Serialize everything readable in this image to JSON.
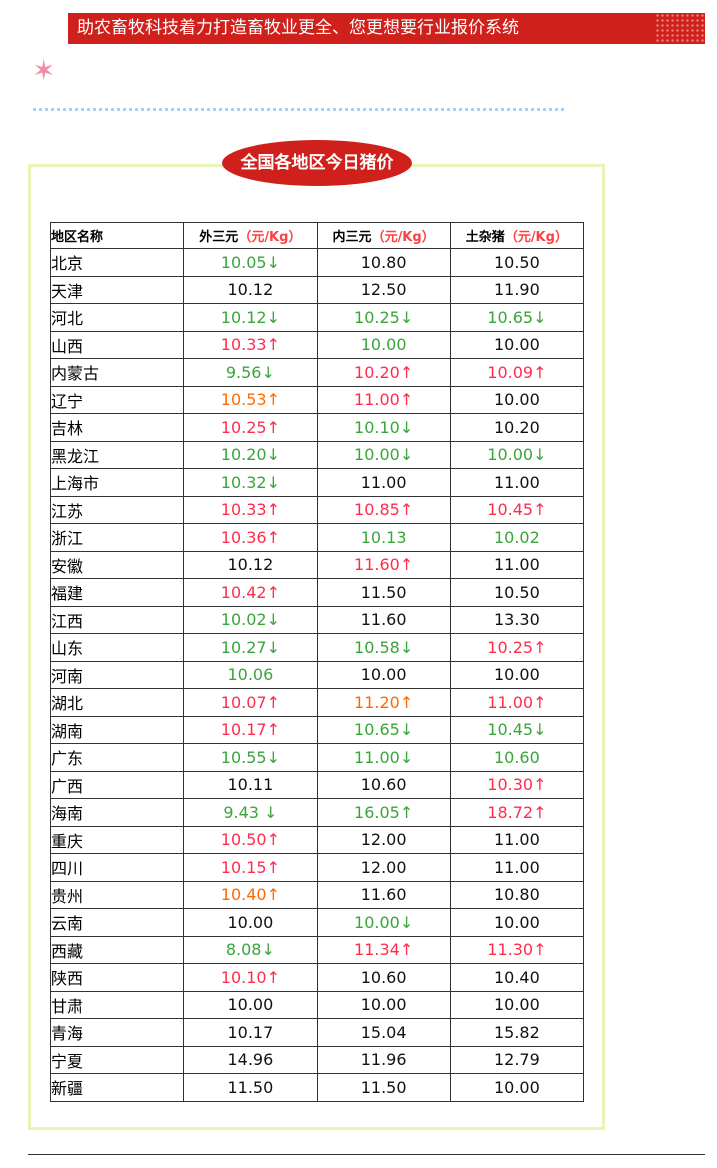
{
  "banner": {
    "title": "助农畜牧科技着力打造畜牧业更全、您更想要行业报价系统"
  },
  "section": {
    "title": "全国各地区今日猪价"
  },
  "colors": {
    "down": "#3aa53a",
    "up": "#ff2d4b",
    "up_alt": "#ff6a00",
    "neutral": "#111111",
    "banner": "#d0201b"
  },
  "table": {
    "headers": [
      {
        "label": "地区名称",
        "unit": ""
      },
      {
        "label": "外三元",
        "unit": "（元/Kg）"
      },
      {
        "label": "内三元",
        "unit": "（元/Kg）"
      },
      {
        "label": "土杂猪",
        "unit": "（元/Kg）"
      }
    ],
    "rows": [
      {
        "region": "北京",
        "cells": [
          [
            "10.05↓",
            "g"
          ],
          [
            "10.80",
            "k"
          ],
          [
            "10.50",
            "k"
          ]
        ]
      },
      {
        "region": "天津",
        "cells": [
          [
            "10.12",
            "k"
          ],
          [
            "12.50",
            "k"
          ],
          [
            "11.90",
            "k"
          ]
        ]
      },
      {
        "region": "河北",
        "cells": [
          [
            "10.12↓",
            "g"
          ],
          [
            "10.25↓",
            "g"
          ],
          [
            "10.65↓",
            "g"
          ]
        ]
      },
      {
        "region": "山西",
        "cells": [
          [
            "10.33↑",
            "r"
          ],
          [
            "10.00",
            "g"
          ],
          [
            "10.00",
            "k"
          ]
        ]
      },
      {
        "region": "内蒙古",
        "cells": [
          [
            "9.56↓",
            "g"
          ],
          [
            "10.20↑",
            "r"
          ],
          [
            "10.09↑",
            "r"
          ]
        ]
      },
      {
        "region": "辽宁",
        "cells": [
          [
            "10.53↑",
            "o"
          ],
          [
            "11.00↑",
            "r"
          ],
          [
            "10.00",
            "k"
          ]
        ]
      },
      {
        "region": "吉林",
        "cells": [
          [
            "10.25↑",
            "r"
          ],
          [
            "10.10↓",
            "g"
          ],
          [
            "10.20",
            "k"
          ]
        ]
      },
      {
        "region": "黑龙江",
        "cells": [
          [
            "10.20↓",
            "g"
          ],
          [
            "10.00↓",
            "g"
          ],
          [
            "10.00↓",
            "g"
          ]
        ]
      },
      {
        "region": "上海市",
        "cells": [
          [
            "10.32↓",
            "g"
          ],
          [
            "11.00",
            "k"
          ],
          [
            "11.00",
            "k"
          ]
        ]
      },
      {
        "region": "江苏",
        "cells": [
          [
            "10.33↑",
            "r"
          ],
          [
            "10.85↑",
            "r"
          ],
          [
            "10.45↑",
            "r"
          ]
        ]
      },
      {
        "region": "浙江",
        "cells": [
          [
            "10.36↑",
            "r"
          ],
          [
            "10.13",
            "g"
          ],
          [
            "10.02",
            "g"
          ]
        ]
      },
      {
        "region": "安徽",
        "cells": [
          [
            "10.12",
            "k"
          ],
          [
            "11.60↑",
            "r"
          ],
          [
            "11.00",
            "k"
          ]
        ]
      },
      {
        "region": "福建",
        "cells": [
          [
            "10.42↑",
            "r"
          ],
          [
            "11.50",
            "k"
          ],
          [
            "10.50",
            "k"
          ]
        ]
      },
      {
        "region": "江西",
        "cells": [
          [
            "10.02↓",
            "g"
          ],
          [
            "11.60",
            "k"
          ],
          [
            "13.30",
            "k"
          ]
        ]
      },
      {
        "region": "山东",
        "cells": [
          [
            "10.27↓",
            "g"
          ],
          [
            "10.58↓",
            "g"
          ],
          [
            "10.25↑",
            "r"
          ]
        ]
      },
      {
        "region": "河南",
        "cells": [
          [
            "10.06",
            "g"
          ],
          [
            "10.00",
            "k"
          ],
          [
            "10.00",
            "k"
          ]
        ]
      },
      {
        "region": "湖北",
        "cells": [
          [
            "10.07↑",
            "r"
          ],
          [
            "11.20↑",
            "o"
          ],
          [
            "11.00↑",
            "r"
          ]
        ]
      },
      {
        "region": "湖南",
        "cells": [
          [
            "10.17↑",
            "r"
          ],
          [
            "10.65↓",
            "g"
          ],
          [
            "10.45↓",
            "g"
          ]
        ]
      },
      {
        "region": "广东",
        "cells": [
          [
            "10.55↓",
            "g"
          ],
          [
            "11.00↓",
            "g"
          ],
          [
            "10.60",
            "g"
          ]
        ]
      },
      {
        "region": "广西",
        "cells": [
          [
            "10.11",
            "k"
          ],
          [
            "10.60",
            "k"
          ],
          [
            "10.30↑",
            "r"
          ]
        ]
      },
      {
        "region": "海南",
        "cells": [
          [
            "9.43 ↓",
            "g"
          ],
          [
            "16.05↑",
            "g"
          ],
          [
            "18.72↑",
            "r"
          ]
        ]
      },
      {
        "region": "重庆",
        "cells": [
          [
            "10.50↑",
            "r"
          ],
          [
            "12.00",
            "k"
          ],
          [
            "11.00",
            "k"
          ]
        ]
      },
      {
        "region": "四川",
        "cells": [
          [
            "10.15↑",
            "r"
          ],
          [
            "12.00",
            "k"
          ],
          [
            "11.00",
            "k"
          ]
        ]
      },
      {
        "region": "贵州",
        "cells": [
          [
            "10.40↑",
            "o"
          ],
          [
            "11.60",
            "k"
          ],
          [
            "10.80",
            "k"
          ]
        ]
      },
      {
        "region": "云南",
        "cells": [
          [
            "10.00",
            "k"
          ],
          [
            "10.00↓",
            "g"
          ],
          [
            "10.00",
            "k"
          ]
        ]
      },
      {
        "region": "西藏",
        "cells": [
          [
            "8.08↓",
            "g"
          ],
          [
            "11.34↑",
            "r"
          ],
          [
            "11.30↑",
            "r"
          ]
        ]
      },
      {
        "region": "陕西",
        "cells": [
          [
            "10.10↑",
            "r"
          ],
          [
            "10.60",
            "k"
          ],
          [
            "10.40",
            "k"
          ]
        ]
      },
      {
        "region": "甘肃",
        "cells": [
          [
            "10.00",
            "k"
          ],
          [
            "10.00",
            "k"
          ],
          [
            "10.00",
            "k"
          ]
        ]
      },
      {
        "region": "青海",
        "cells": [
          [
            "10.17",
            "k"
          ],
          [
            "15.04",
            "k"
          ],
          [
            "15.82",
            "k"
          ]
        ]
      },
      {
        "region": "宁夏",
        "cells": [
          [
            "14.96",
            "k"
          ],
          [
            "11.96",
            "k"
          ],
          [
            "12.79",
            "k"
          ]
        ]
      },
      {
        "region": "新疆",
        "cells": [
          [
            "11.50",
            "k"
          ],
          [
            "11.50",
            "k"
          ],
          [
            "10.00",
            "k"
          ]
        ]
      }
    ]
  }
}
